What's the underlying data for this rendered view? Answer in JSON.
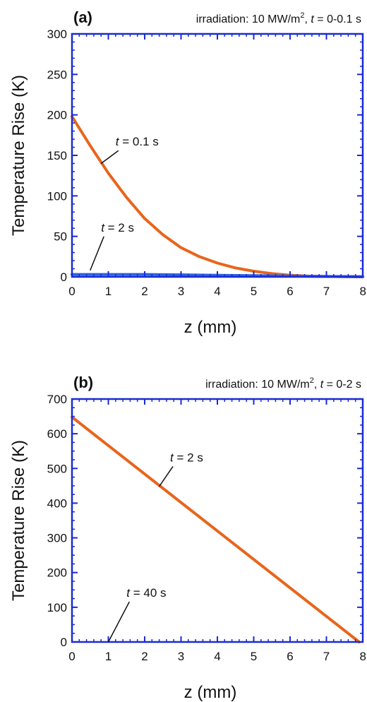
{
  "colors": {
    "axes": "#1a2bd4",
    "curve_primary": "#e8651b",
    "curve_secondary": "#2b63e0",
    "text": "#111111",
    "pointer": "#111111"
  },
  "chart_data": [
    {
      "type": "line",
      "panel_label": "(a)",
      "title": {
        "prefix": "irradiation: 10 MW/m",
        "sup": "2",
        "middle": ", ",
        "var": "t",
        "suffix": " = 0-0.1 s"
      },
      "xlabel": "z (mm)",
      "ylabel": "Temperature Rise (K)",
      "xlim": [
        0,
        8
      ],
      "ylim": [
        0,
        300
      ],
      "xticks": [
        0,
        1,
        2,
        3,
        4,
        5,
        6,
        7,
        8
      ],
      "yticks": [
        0,
        50,
        100,
        150,
        200,
        250,
        300
      ],
      "minor_x_per_major": 5,
      "minor_y_per_major": 5,
      "series": [
        {
          "color_key": "curve_primary",
          "x": [
            0,
            0.5,
            1,
            1.5,
            2,
            2.5,
            3,
            3.5,
            4,
            4.5,
            5,
            5.5,
            6,
            6.5,
            7,
            7.5,
            8
          ],
          "y": [
            198,
            162,
            128,
            98,
            72,
            52,
            36,
            25,
            17,
            11,
            7,
            4,
            2,
            1,
            0.5,
            0.2,
            0
          ]
        },
        {
          "color_key": "curve_secondary",
          "x": [
            0,
            1,
            2,
            3,
            4,
            5,
            6,
            7,
            8
          ],
          "y": [
            3,
            3,
            3,
            2.5,
            2,
            1.5,
            1,
            0.5,
            0.3
          ]
        }
      ],
      "annotations": [
        {
          "var": "t",
          "text": " = 0.1 s",
          "label_at": [
            1.2,
            162
          ],
          "point_at": [
            0.8,
            140
          ]
        },
        {
          "var": "t",
          "text": " = 2 s",
          "label_at": [
            0.8,
            56
          ],
          "point_at": [
            0.5,
            8
          ]
        }
      ]
    },
    {
      "type": "line",
      "panel_label": "(b)",
      "title": {
        "prefix": "irradiation: 10 MW/m",
        "sup": "2",
        "middle": ", ",
        "var": "t",
        "suffix": " = 0-2 s"
      },
      "xlabel": "z (mm)",
      "ylabel": "Temperature Rise (K)",
      "xlim": [
        0,
        8
      ],
      "ylim": [
        0,
        700
      ],
      "xticks": [
        0,
        1,
        2,
        3,
        4,
        5,
        6,
        7,
        8
      ],
      "yticks": [
        0,
        100,
        200,
        300,
        400,
        500,
        600,
        700
      ],
      "minor_x_per_major": 5,
      "minor_y_per_major": 4,
      "series": [
        {
          "color_key": "curve_primary",
          "x": [
            0,
            7.9
          ],
          "y": [
            648,
            0
          ]
        }
      ],
      "annotations": [
        {
          "var": "t",
          "text": " = 2 s",
          "label_at": [
            2.7,
            520
          ],
          "point_at": [
            2.4,
            448
          ]
        },
        {
          "var": "t",
          "text": " = 40 s",
          "label_at": [
            1.5,
            130
          ],
          "point_at": [
            1,
            0
          ]
        }
      ]
    }
  ]
}
